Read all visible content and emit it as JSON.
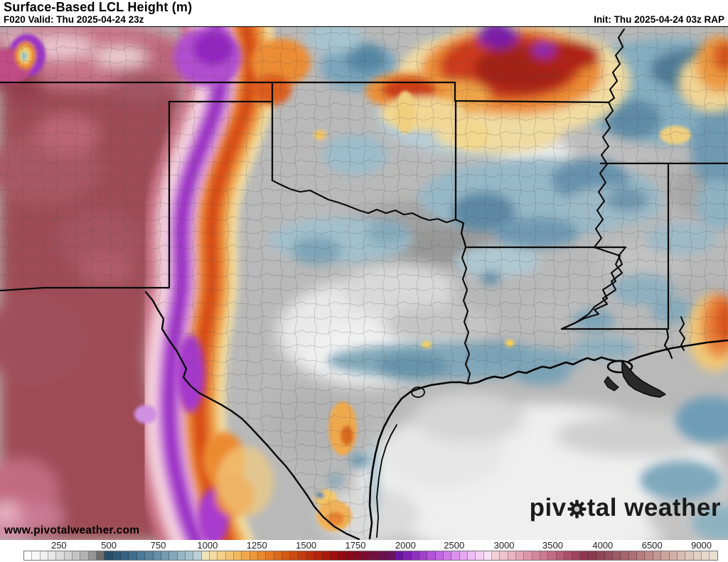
{
  "header": {
    "title": "Surface-Based LCL Height (m)",
    "valid": "F020 Valid: Thu 2025-04-24 23z",
    "init": "Init: Thu 2025-04-24 03z RAP"
  },
  "map": {
    "watermark": "www.pivotalweather.com",
    "brand_left": "piv",
    "brand_right": "tal weather",
    "gear_icon": "gear replaces letter o in pivotal"
  },
  "palette": {
    "page_bg": "#ffffff",
    "text": "#000000",
    "brand": "#1b1b1b",
    "tick_text": "#1f1f1f",
    "border": "#000000"
  },
  "colorbar": {
    "units": "m",
    "ticks": [
      {
        "label": "250",
        "pct": 5.1
      },
      {
        "label": "500",
        "pct": 12.3
      },
      {
        "label": "750",
        "pct": 19.4
      },
      {
        "label": "1000",
        "pct": 26.5
      },
      {
        "label": "1250",
        "pct": 33.6
      },
      {
        "label": "1500",
        "pct": 40.7
      },
      {
        "label": "1750",
        "pct": 47.8
      },
      {
        "label": "2000",
        "pct": 55.0
      },
      {
        "label": "2500",
        "pct": 62.0
      },
      {
        "label": "3000",
        "pct": 69.2
      },
      {
        "label": "3500",
        "pct": 76.2
      },
      {
        "label": "4000",
        "pct": 83.4
      },
      {
        "label": "6500",
        "pct": 90.5
      },
      {
        "label": "9000",
        "pct": 97.6
      }
    ],
    "cells": [
      "#ffffff",
      "#f8f8f8",
      "#f0f0f0",
      "#e7e7e7",
      "#dcdcdc",
      "#d1d1d1",
      "#c4c4c4",
      "#b2b2b2",
      "#969696",
      "#6e6e6e",
      "#27506b",
      "#2e5a78",
      "#366383",
      "#406e8e",
      "#4b7997",
      "#57849f",
      "#6590a8",
      "#749cb1",
      "#84a9bb",
      "#95b5c4",
      "#a7c2cd",
      "#bacfd7",
      "#efe3ba",
      "#f2dba2",
      "#f3d189",
      "#f3c573",
      "#f1b85e",
      "#eea84a",
      "#ec983a",
      "#e8892e",
      "#e37923",
      "#dc691c",
      "#d55915",
      "#cd4a11",
      "#c53c0e",
      "#bd2e0c",
      "#b4230b",
      "#aa180b",
      "#a00f0c",
      "#960910",
      "#8c091a",
      "#840b27",
      "#7c0d34",
      "#750f41",
      "#6f1050",
      "#6a115f",
      "#6b13a4",
      "#7d20b2",
      "#8f2fc0",
      "#a140cc",
      "#b253d8",
      "#c366e2",
      "#d07ae8",
      "#dc90ee",
      "#e6a6f2",
      "#efbcf4",
      "#f5d0f5",
      "#f9e2f5",
      "#f4cfd9",
      "#efc2ce",
      "#eab4c2",
      "#e4a6b6",
      "#dd97aa",
      "#d4889e",
      "#cb7991",
      "#c16b84",
      "#b65d77",
      "#ab4f6a",
      "#9f425d",
      "#923650",
      "#8c3a50",
      "#914456",
      "#974e5d",
      "#9e5964",
      "#a6646c",
      "#ae7074",
      "#b67d7e",
      "#be8a88",
      "#c59792",
      "#cca49c",
      "#d2b0a6",
      "#d8bcb0",
      "#ddc6ba",
      "#e1cfc2",
      "#e5d7ca",
      "#e9dfd2"
    ]
  }
}
